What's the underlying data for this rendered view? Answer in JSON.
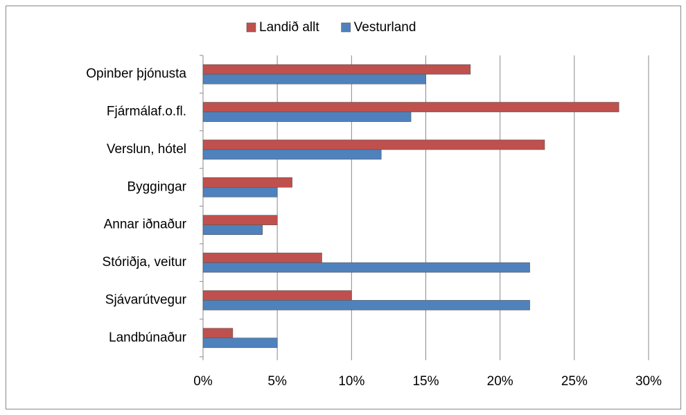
{
  "chart_data": {
    "type": "bar",
    "orientation": "horizontal",
    "categories": [
      "Opinber þjónusta",
      "Fjármálaf.o.fl.",
      "Verslun, hótel",
      "Byggingar",
      "Annar iðnaður",
      "Stóriðja, veitur",
      "Sjávarútvegur",
      "Landbúnaður"
    ],
    "series": [
      {
        "name": "Landið allt",
        "color": "#c0504d",
        "values": [
          18,
          28,
          23,
          6,
          5,
          8,
          10,
          2
        ]
      },
      {
        "name": "Vesturland",
        "color": "#4f81bd",
        "values": [
          15,
          14,
          12,
          5,
          4,
          22,
          22,
          5
        ]
      }
    ],
    "xlim": [
      0,
      30
    ],
    "xticks": [
      {
        "value": 0,
        "label": "0%"
      },
      {
        "value": 5,
        "label": "5%"
      },
      {
        "value": 10,
        "label": "10%"
      },
      {
        "value": 15,
        "label": "15%"
      },
      {
        "value": 20,
        "label": "20%"
      },
      {
        "value": 25,
        "label": "25%"
      },
      {
        "value": 30,
        "label": "30%"
      }
    ],
    "grid": true,
    "legend": "top"
  }
}
